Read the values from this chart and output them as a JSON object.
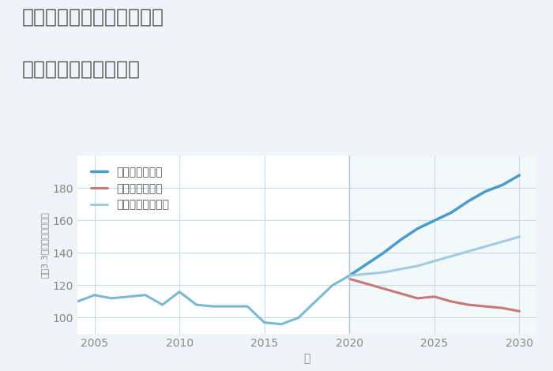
{
  "title_line1": "大阪府豊中市新千里北町の",
  "title_line2": "中古戸建ての価格推移",
  "xlabel": "年",
  "ylabel": "坪（3.3㎡）単価（万円）",
  "background_color": "#f0f4f8",
  "plot_background_color": "#ffffff",
  "grid_color": "#c5d8e8",
  "title_color": "#555555",
  "tick_color": "#888888",
  "ylim": [
    90,
    200
  ],
  "yticks": [
    100,
    120,
    140,
    160,
    180
  ],
  "historical": {
    "years": [
      2004,
      2005,
      2006,
      2007,
      2008,
      2009,
      2010,
      2011,
      2012,
      2013,
      2014,
      2015,
      2016,
      2017,
      2018,
      2019,
      2020
    ],
    "values": [
      110,
      114,
      112,
      113,
      114,
      108,
      116,
      108,
      107,
      107,
      107,
      97,
      96,
      100,
      110,
      120,
      126
    ],
    "color": "#7ab8d4",
    "linewidth": 2.2
  },
  "good": {
    "label": "グッドシナリオ",
    "years": [
      2020,
      2021,
      2022,
      2023,
      2024,
      2025,
      2026,
      2027,
      2028,
      2029,
      2030
    ],
    "values": [
      126,
      133,
      140,
      148,
      155,
      160,
      165,
      172,
      178,
      182,
      188
    ],
    "color": "#4a9cc8",
    "linewidth": 2.5
  },
  "bad": {
    "label": "バッドシナリオ",
    "years": [
      2020,
      2021,
      2022,
      2023,
      2024,
      2025,
      2026,
      2027,
      2028,
      2029,
      2030
    ],
    "values": [
      124,
      121,
      118,
      115,
      112,
      113,
      110,
      108,
      107,
      106,
      104
    ],
    "color": "#c87878",
    "linewidth": 2.2
  },
  "normal": {
    "label": "ノーマルシナリオ",
    "years": [
      2020,
      2021,
      2022,
      2023,
      2024,
      2025,
      2026,
      2027,
      2028,
      2029,
      2030
    ],
    "values": [
      126,
      127,
      128,
      130,
      132,
      135,
      138,
      141,
      144,
      147,
      150
    ],
    "color": "#a0cce0",
    "linewidth": 2.2
  },
  "forecast_vline_x": 2020,
  "forecast_vline_color": "#aac4d8",
  "forecast_shade_color": "#d0e4f0",
  "forecast_shade_alpha": 0.25,
  "xticks": [
    2005,
    2010,
    2015,
    2020,
    2025,
    2030
  ],
  "xlim": [
    2004,
    2031
  ],
  "title_fontsize": 18,
  "label_fontsize": 10,
  "tick_fontsize": 10,
  "legend_fontsize": 10
}
